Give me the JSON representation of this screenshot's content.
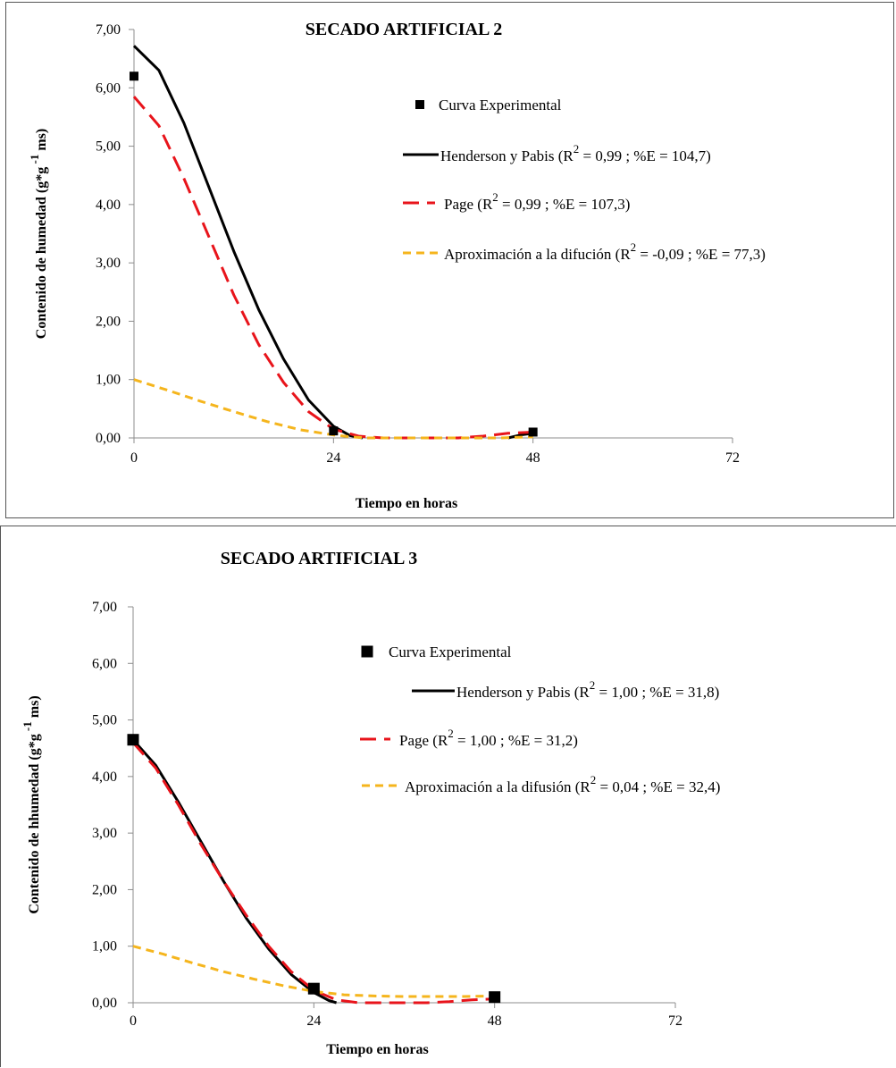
{
  "chart_data": [
    {
      "type": "line",
      "title": "SECADO ARTIFICIAL 2",
      "xlabel": "Tiempo en horas",
      "ylabel_text": "Contenido de humedad (g*g",
      "ylabel_sup": "-1",
      "ylabel_end": " ms)",
      "xlim": [
        0,
        72
      ],
      "ylim": [
        0,
        7
      ],
      "x_ticks": [
        "0",
        "24",
        "48",
        "72"
      ],
      "y_ticks": [
        "0,00",
        "1,00",
        "2,00",
        "3,00",
        "4,00",
        "5,00",
        "6,00",
        "7,00"
      ],
      "grid": false,
      "legend_position": "right",
      "experimental": {
        "name": "Curva Experimental",
        "x": [
          0,
          24,
          48
        ],
        "y": [
          6.2,
          0.12,
          0.1
        ]
      },
      "series": [
        {
          "name_pre": "Henderson y Pabis (R",
          "name_sup": "2",
          "name_post": " = 0,99 ; %E = 104,7)",
          "color": "#000000",
          "dash": "solid",
          "x": [
            0,
            3,
            6,
            9,
            12,
            15,
            18,
            21,
            24,
            26,
            27.5,
            30,
            36,
            42,
            45,
            46.5,
            48
          ],
          "y": [
            6.72,
            6.3,
            5.4,
            4.3,
            3.2,
            2.2,
            1.35,
            0.65,
            0.2,
            0.04,
            0.0,
            null,
            null,
            null,
            0.0,
            0.05,
            0.08
          ]
        },
        {
          "name_pre": "Page (R",
          "name_sup": "2",
          "name_post": " = 0,99 ; %E = 107,3)",
          "color": "#e8141b",
          "dash": "dashed",
          "x": [
            0,
            3,
            6,
            9,
            12,
            15,
            18,
            21,
            24,
            27,
            30,
            33,
            36,
            39,
            42,
            45,
            48
          ],
          "y": [
            5.85,
            5.35,
            4.45,
            3.45,
            2.45,
            1.6,
            0.95,
            0.45,
            0.15,
            0.03,
            0.0,
            0.0,
            0.0,
            0.0,
            0.03,
            0.08,
            0.1
          ]
        },
        {
          "name_pre": "Aproximación a la difución (R",
          "name_sup": "2",
          "name_post": " = -0,09 ; %E = 77,3)",
          "color": "#f5b51d",
          "dash": "dashed",
          "x": [
            0,
            4,
            8,
            12,
            16,
            20,
            24,
            26,
            28,
            32,
            36,
            40,
            44,
            48
          ],
          "y": [
            1.0,
            0.82,
            0.63,
            0.45,
            0.28,
            0.14,
            0.05,
            0.02,
            0.0,
            0.0,
            0.0,
            0.0,
            0.0,
            0.02
          ]
        }
      ]
    },
    {
      "type": "line",
      "title": "SECADO ARTIFICIAL 3",
      "xlabel": "Tiempo en  horas",
      "ylabel_text": "Contenido de hhumedad (g*g",
      "ylabel_sup": "-1",
      "ylabel_end": " ms)",
      "xlim": [
        0,
        72
      ],
      "ylim": [
        0,
        7
      ],
      "x_ticks": [
        "0",
        "24",
        "48",
        "72"
      ],
      "y_ticks": [
        "0,00",
        "1,00",
        "2,00",
        "3,00",
        "4,00",
        "5,00",
        "6,00",
        "7,00"
      ],
      "grid": false,
      "legend_position": "right",
      "experimental": {
        "name": "Curva Experimental",
        "x": [
          0,
          24,
          48
        ],
        "y": [
          4.65,
          0.25,
          0.1
        ]
      },
      "series": [
        {
          "name_pre": "Henderson y Pabis (R",
          "name_sup": "2",
          "name_post": " = 1,00 ; %E = 31,8)",
          "color": "#000000",
          "dash": "solid",
          "x": [
            0,
            3,
            6,
            9,
            12,
            15,
            18,
            21,
            24,
            26,
            27
          ],
          "y": [
            4.65,
            4.2,
            3.55,
            2.85,
            2.15,
            1.5,
            0.95,
            0.5,
            0.18,
            0.04,
            0.0
          ]
        },
        {
          "name_pre": "Page (R",
          "name_sup": "2",
          "name_post": " = 1,00 ; %E = 31,2)",
          "color": "#e8141b",
          "dash": "dashed",
          "x": [
            0,
            3,
            6,
            9,
            12,
            15,
            18,
            21,
            24,
            27,
            30,
            33,
            36,
            39,
            42,
            45,
            48
          ],
          "y": [
            4.6,
            4.15,
            3.5,
            2.8,
            2.15,
            1.55,
            1.0,
            0.55,
            0.22,
            0.05,
            0.0,
            0.0,
            0.0,
            0.0,
            0.02,
            0.05,
            0.07
          ]
        },
        {
          "name_pre": "Aproximación a la difusión (R",
          "name_sup": "2",
          "name_post": " = 0,04 ; %E = 32,4)",
          "color": "#f5b51d",
          "dash": "dashed",
          "x": [
            0,
            4,
            8,
            12,
            16,
            20,
            24,
            28,
            32,
            36,
            40,
            44,
            48
          ],
          "y": [
            1.0,
            0.86,
            0.7,
            0.55,
            0.42,
            0.3,
            0.2,
            0.14,
            0.12,
            0.11,
            0.11,
            0.11,
            0.12
          ]
        }
      ]
    }
  ]
}
